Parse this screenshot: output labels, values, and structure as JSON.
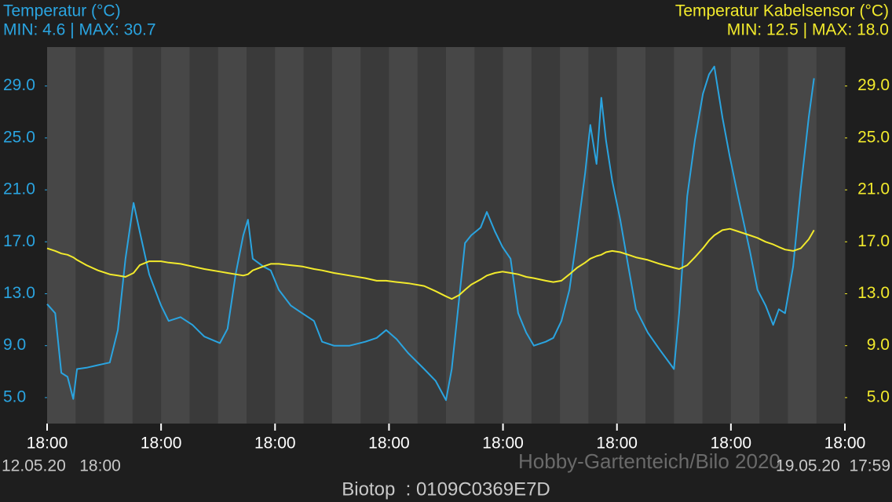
{
  "chart_data": {
    "type": "line",
    "header": {
      "left_title": "Temperatur (°C)",
      "left_stats": "MIN: 4.6 | MAX: 30.7",
      "right_title": "Temperatur Kabelsensor (°C)",
      "right_stats": "MIN: 12.5 | MAX: 18.0"
    },
    "footer": {
      "start": "12.05.20   18:00",
      "end": "19.05.20  17:59",
      "device": "Biotop  : 0109C0369E7D",
      "watermark": "Hobby-Gartenteich/Bilo 2020"
    },
    "x": [
      0,
      1.7,
      3.0,
      4.3,
      5.5,
      6.3,
      8.3,
      10.7,
      13.2,
      14.9,
      16.5,
      18.2,
      19.5,
      21.5,
      24.0,
      25.6,
      28.1,
      30.6,
      33.1,
      36.4,
      38.0,
      39.7,
      41.3,
      42.3,
      43.3,
      45.5,
      47.1,
      48.8,
      51.3,
      53.7,
      56.2,
      57.9,
      60.4,
      63.7,
      67.0,
      69.4,
      71.4,
      73.6,
      76.1,
      79.4,
      81.8,
      84.0,
      85.2,
      86.8,
      88.0,
      89.3,
      91.3,
      92.6,
      94.3,
      95.9,
      97.6,
      99.2,
      100.9,
      102.5,
      105.0,
      106.6,
      108.3,
      110.0,
      111.6,
      113.3,
      114.4,
      115.7,
      116.7,
      117.7,
      119.0,
      120.7,
      122.4,
      124.0,
      126.5,
      129.0,
      132.0,
      133.1,
      134.8,
      136.4,
      138.1,
      139.4,
      140.5,
      142.2,
      143.8,
      145.5,
      148.0,
      149.6,
      151.3,
      152.9,
      154.1,
      155.4,
      157.1,
      158.7,
      160.4,
      161.5
    ],
    "series": [
      {
        "name": "Temperatur (°C)",
        "color": "#2aa4e0",
        "axis": "y",
        "values": [
          12.2,
          11.5,
          6.9,
          6.6,
          4.9,
          7.2,
          7.3,
          7.5,
          7.7,
          10.2,
          15.7,
          20.0,
          17.8,
          14.5,
          12.1,
          10.9,
          11.2,
          10.6,
          9.7,
          9.2,
          10.3,
          14.5,
          17.5,
          18.7,
          15.7,
          15.1,
          14.8,
          13.3,
          12.1,
          11.5,
          10.9,
          9.3,
          9.0,
          9.0,
          9.3,
          9.6,
          10.2,
          9.5,
          8.4,
          7.2,
          6.3,
          4.8,
          7.2,
          12.7,
          16.9,
          17.5,
          18.1,
          19.3,
          17.8,
          16.6,
          15.7,
          11.5,
          10.0,
          9.0,
          9.3,
          9.6,
          10.9,
          13.3,
          17.5,
          22.3,
          26.0,
          23.0,
          28.1,
          24.8,
          21.7,
          18.7,
          15.1,
          11.8,
          10.0,
          8.7,
          7.2,
          11.5,
          20.5,
          24.8,
          28.4,
          29.9,
          30.5,
          26.6,
          23.5,
          20.5,
          16.3,
          13.3,
          12.1,
          10.6,
          11.8,
          11.5,
          15.1,
          21.1,
          26.6,
          29.6
        ]
      },
      {
        "name": "Temperatur Kabelsensor (°C)",
        "color": "#f2ea2c",
        "axis": "y2",
        "values": [
          16.5,
          16.3,
          16.1,
          16.0,
          15.8,
          15.6,
          15.2,
          14.8,
          14.5,
          14.4,
          14.3,
          14.6,
          15.2,
          15.5,
          15.5,
          15.4,
          15.3,
          15.1,
          14.9,
          14.7,
          14.6,
          14.5,
          14.4,
          14.5,
          14.8,
          15.1,
          15.3,
          15.3,
          15.2,
          15.1,
          14.9,
          14.8,
          14.6,
          14.4,
          14.2,
          14.0,
          14.0,
          13.9,
          13.8,
          13.6,
          13.2,
          12.8,
          12.6,
          12.9,
          13.3,
          13.7,
          14.1,
          14.4,
          14.6,
          14.7,
          14.6,
          14.5,
          14.3,
          14.2,
          14.0,
          13.9,
          14.0,
          14.5,
          15.0,
          15.4,
          15.7,
          15.9,
          16.0,
          16.2,
          16.3,
          16.2,
          16.0,
          15.8,
          15.6,
          15.3,
          15.0,
          14.9,
          15.2,
          15.8,
          16.5,
          17.1,
          17.5,
          17.9,
          18.0,
          17.8,
          17.5,
          17.3,
          17.0,
          16.8,
          16.6,
          16.4,
          16.3,
          16.5,
          17.2,
          17.9
        ]
      }
    ],
    "xlim": [
      0,
      168
    ],
    "xticks": [
      {
        "value": 0,
        "label": "18:00"
      },
      {
        "value": 24,
        "label": "18:00"
      },
      {
        "value": 48,
        "label": "18:00"
      },
      {
        "value": 72,
        "label": "18:00"
      },
      {
        "value": 96,
        "label": "18:00"
      },
      {
        "value": 120,
        "label": "18:00"
      },
      {
        "value": 144,
        "label": "18:00"
      },
      {
        "value": 168,
        "label": "18:00"
      }
    ],
    "ylim": [
      3,
      32
    ],
    "yticks": [
      {
        "value": 5,
        "label": "5.0"
      },
      {
        "value": 9,
        "label": "9.0"
      },
      {
        "value": 13,
        "label": "13.0"
      },
      {
        "value": 17,
        "label": "17.0"
      },
      {
        "value": 21,
        "label": "21.0"
      },
      {
        "value": 25,
        "label": "25.0"
      },
      {
        "value": 29,
        "label": "29.0"
      }
    ],
    "y2lim": [
      3,
      32
    ],
    "y2ticks": [
      {
        "value": 5,
        "label": "5.0"
      },
      {
        "value": 9,
        "label": "9.0"
      },
      {
        "value": 13,
        "label": "13.0"
      },
      {
        "value": 17,
        "label": "17.0"
      },
      {
        "value": 21,
        "label": "21.0"
      },
      {
        "value": 25,
        "label": "25.0"
      },
      {
        "value": 29,
        "label": "29.0"
      }
    ]
  }
}
